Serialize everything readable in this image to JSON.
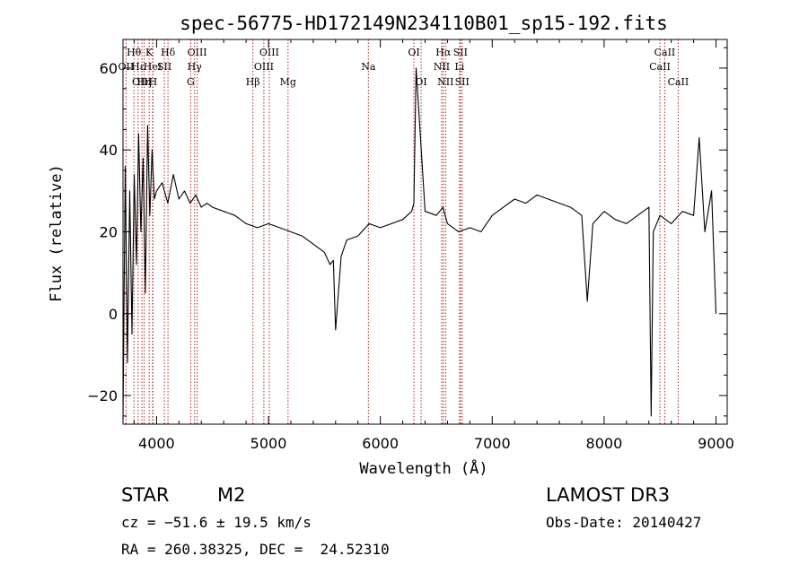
{
  "chart_data": {
    "type": "line",
    "title": "spec-56775-HD172149N234110B01_sp15-192.fits",
    "xlabel": "Wavelength (Å)",
    "ylabel": "Flux (relative)",
    "xlim": [
      3700,
      9100
    ],
    "ylim": [
      -27,
      67
    ],
    "x_ticks": [
      4000,
      5000,
      6000,
      7000,
      8000,
      9000
    ],
    "y_ticks": [
      -20,
      0,
      20,
      40,
      60
    ],
    "grid": false,
    "line_color": "#000000",
    "marker_color": "#b22222",
    "series": [
      {
        "x": [
          3700,
          3720,
          3740,
          3760,
          3780,
          3800,
          3820,
          3840,
          3860,
          3880,
          3900,
          3920,
          3940,
          3960,
          3980,
          4000,
          4050,
          4100,
          4150,
          4200,
          4250,
          4300,
          4350,
          4400,
          4450,
          4500,
          4600,
          4700,
          4800,
          4900,
          5000,
          5100,
          5200,
          5300,
          5400,
          5500,
          5550,
          5580,
          5600,
          5650,
          5700,
          5800,
          5900,
          6000,
          6100,
          6200,
          6280,
          6300,
          6320,
          6400,
          6500,
          6560,
          6600,
          6700,
          6800,
          6900,
          7000,
          7100,
          7200,
          7300,
          7400,
          7500,
          7600,
          7700,
          7800,
          7850,
          7900,
          8000,
          8100,
          8200,
          8300,
          8400,
          8420,
          8440,
          8500,
          8600,
          8700,
          8800,
          8850,
          8900,
          8960,
          9000
        ],
        "y": [
          -26,
          36,
          -12,
          30,
          -5,
          34,
          12,
          44,
          20,
          38,
          5,
          46,
          24,
          40,
          28,
          30,
          32,
          27,
          34,
          28,
          30,
          27,
          29,
          26,
          27,
          26,
          25,
          24,
          22,
          21,
          22,
          21,
          20,
          19,
          17,
          15,
          12,
          13,
          -4,
          14,
          18,
          19,
          22,
          21,
          22,
          23,
          25,
          27,
          60,
          25,
          24,
          26,
          22,
          20,
          21,
          20,
          24,
          26,
          28,
          27,
          29,
          28,
          27,
          26,
          24,
          3,
          22,
          25,
          23,
          22,
          24,
          26,
          -25,
          20,
          24,
          22,
          25,
          24,
          43,
          20,
          30,
          0
        ]
      }
    ],
    "line_markers": [
      {
        "label": "Hθ",
        "x": 3798,
        "row": 1
      },
      {
        "label": "OII",
        "x": 3727,
        "row": 2
      },
      {
        "label": "OIII",
        "x": 3869,
        "row": 3
      },
      {
        "label": "Hε",
        "x": 3835,
        "row": 2
      },
      {
        "label": "Hη",
        "x": 3889,
        "row": 3
      },
      {
        "label": "K",
        "x": 3934,
        "row": 1
      },
      {
        "label": "HeI",
        "x": 3965,
        "row": 2
      },
      {
        "label": "H",
        "x": 3968,
        "row": 3
      },
      {
        "label": "Hδ",
        "x": 4102,
        "row": 1
      },
      {
        "label": "SII",
        "x": 4070,
        "row": 2
      },
      {
        "label": "OIII",
        "x": 4363,
        "row": 1
      },
      {
        "label": "Hγ",
        "x": 4340,
        "row": 2
      },
      {
        "label": "G",
        "x": 4305,
        "row": 3
      },
      {
        "label": "OIII",
        "x": 5007,
        "row": 1
      },
      {
        "label": "OIII",
        "x": 4959,
        "row": 2
      },
      {
        "label": "Hβ",
        "x": 4861,
        "row": 3
      },
      {
        "label": "Mg",
        "x": 5175,
        "row": 3
      },
      {
        "label": "Na",
        "x": 5893,
        "row": 2
      },
      {
        "label": "OI",
        "x": 6300,
        "row": 1
      },
      {
        "label": "OI",
        "x": 6364,
        "row": 3
      },
      {
        "label": "Hα",
        "x": 6563,
        "row": 1
      },
      {
        "label": "SII",
        "x": 6716,
        "row": 1
      },
      {
        "label": "NII",
        "x": 6548,
        "row": 2
      },
      {
        "label": "Li",
        "x": 6708,
        "row": 2
      },
      {
        "label": "NII",
        "x": 6583,
        "row": 3
      },
      {
        "label": "SII",
        "x": 6731,
        "row": 3
      },
      {
        "label": "CaII",
        "x": 8542,
        "row": 1
      },
      {
        "label": "CaII",
        "x": 8498,
        "row": 2
      },
      {
        "label": "CaII",
        "x": 8662,
        "row": 3
      }
    ]
  },
  "info": {
    "object_class": "STAR",
    "subclass": "M2",
    "survey": "LAMOST DR3",
    "cz": "cz = −51.6 ± 19.5 km/s",
    "obs_date": "Obs-Date: 20140427",
    "coords": "RA = 260.38325, DEC =  24.52310"
  }
}
